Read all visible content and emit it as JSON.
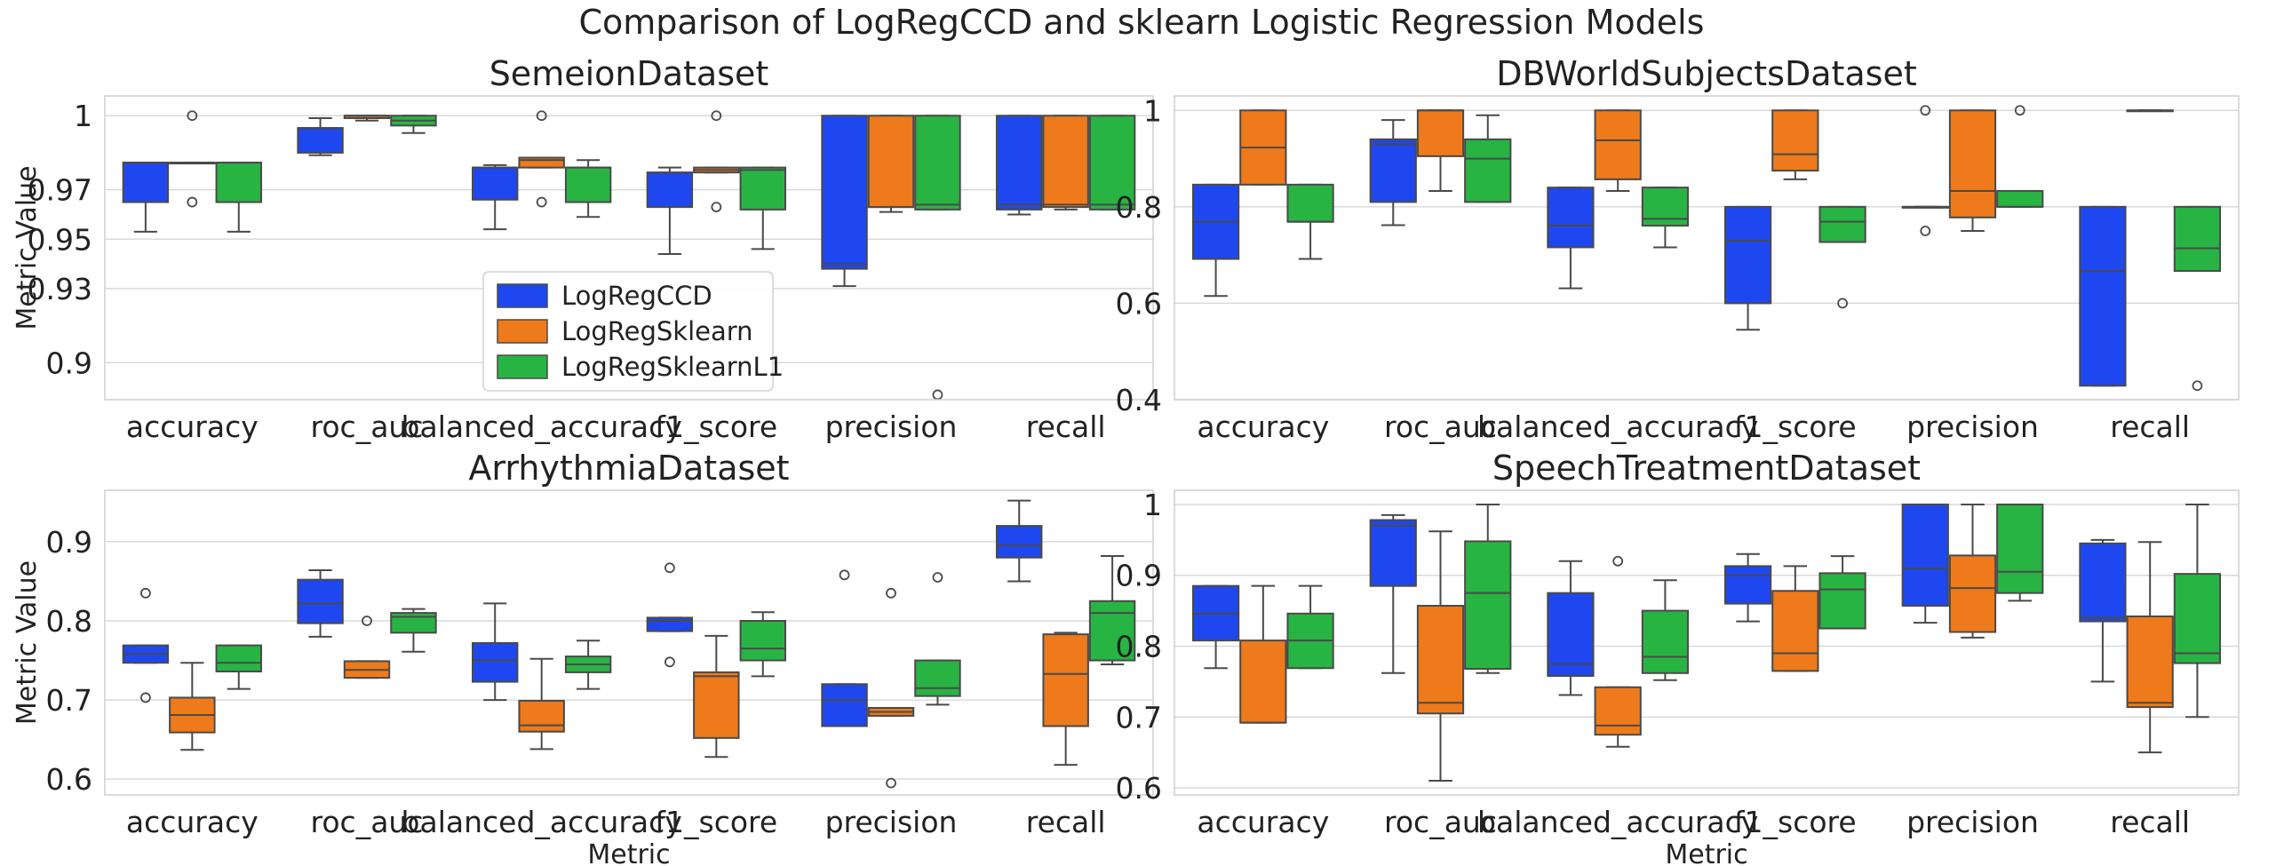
{
  "figure_title": "Comparison of LogRegCCD and sklearn Logistic Regression Models",
  "colors": {
    "LogRegCCD": "#1f47f0",
    "LogRegSklearn": "#ee7a1b",
    "LogRegSklearnL1": "#28b443"
  },
  "legend": {
    "placement": "inside lower-center of top-left panel",
    "entries": [
      "LogRegCCD",
      "LogRegSklearn",
      "LogRegSklearnL1"
    ]
  },
  "chart_data": [
    {
      "type": "box",
      "title": "SemeionDataset",
      "xlabel": "",
      "ylabel": "Metric Value",
      "categories": [
        "accuracy",
        "roc_auc",
        "balanced_accuracy",
        "f1_score",
        "precision",
        "recall"
      ],
      "ylim": [
        0.885,
        1.008
      ],
      "yticks": [
        0.9,
        0.93,
        0.95,
        0.97,
        1
      ],
      "ytick_labels": [
        "0.9",
        "0.93",
        "0.95",
        "0.97",
        "1"
      ],
      "grid": true,
      "series": [
        {
          "name": "LogRegCCD",
          "boxes": [
            {
              "wlo": 0.953,
              "q1": 0.965,
              "med": 0.981,
              "q3": 0.981,
              "whi": 0.981,
              "fliers": []
            },
            {
              "wlo": 0.984,
              "q1": 0.985,
              "med": 0.995,
              "q3": 0.995,
              "whi": 0.999,
              "fliers": []
            },
            {
              "wlo": 0.954,
              "q1": 0.966,
              "med": 0.979,
              "q3": 0.979,
              "whi": 0.98,
              "fliers": []
            },
            {
              "wlo": 0.944,
              "q1": 0.963,
              "med": 0.977,
              "q3": 0.977,
              "whi": 0.979,
              "fliers": []
            },
            {
              "wlo": 0.931,
              "q1": 0.938,
              "med": 0.94,
              "q3": 1.0,
              "whi": 1.0,
              "fliers": []
            },
            {
              "wlo": 0.96,
              "q1": 0.962,
              "med": 0.964,
              "q3": 1.0,
              "whi": 1.0,
              "fliers": []
            }
          ]
        },
        {
          "name": "LogRegSklearn",
          "boxes": [
            {
              "wlo": 0.981,
              "q1": 0.981,
              "med": 0.981,
              "q3": 0.981,
              "whi": 0.981,
              "fliers": [
                1.0,
                0.965
              ]
            },
            {
              "wlo": 0.998,
              "q1": 0.999,
              "med": 1.0,
              "q3": 1.0,
              "whi": 1.0,
              "fliers": []
            },
            {
              "wlo": 0.979,
              "q1": 0.979,
              "med": 0.982,
              "q3": 0.983,
              "whi": 0.983,
              "fliers": [
                1.0,
                0.965
              ]
            },
            {
              "wlo": 0.977,
              "q1": 0.977,
              "med": 0.978,
              "q3": 0.979,
              "whi": 0.979,
              "fliers": [
                1.0,
                0.963
              ]
            },
            {
              "wlo": 0.961,
              "q1": 0.963,
              "med": 0.963,
              "q3": 1.0,
              "whi": 1.0,
              "fliers": []
            },
            {
              "wlo": 0.962,
              "q1": 0.963,
              "med": 0.964,
              "q3": 1.0,
              "whi": 1.0,
              "fliers": []
            }
          ]
        },
        {
          "name": "LogRegSklearnL1",
          "boxes": [
            {
              "wlo": 0.953,
              "q1": 0.965,
              "med": 0.981,
              "q3": 0.981,
              "whi": 0.981,
              "fliers": []
            },
            {
              "wlo": 0.993,
              "q1": 0.996,
              "med": 0.998,
              "q3": 1.0,
              "whi": 1.0,
              "fliers": []
            },
            {
              "wlo": 0.959,
              "q1": 0.965,
              "med": 0.979,
              "q3": 0.979,
              "whi": 0.982,
              "fliers": []
            },
            {
              "wlo": 0.946,
              "q1": 0.962,
              "med": 0.978,
              "q3": 0.979,
              "whi": 0.979,
              "fliers": []
            },
            {
              "wlo": 0.962,
              "q1": 0.962,
              "med": 0.964,
              "q3": 1.0,
              "whi": 1.0,
              "fliers": [
                0.887
              ]
            },
            {
              "wlo": 0.962,
              "q1": 0.962,
              "med": 0.964,
              "q3": 1.0,
              "whi": 1.0,
              "fliers": []
            }
          ]
        }
      ]
    },
    {
      "type": "box",
      "title": "DBWorldSubjectsDataset",
      "xlabel": "",
      "ylabel": "",
      "categories": [
        "accuracy",
        "roc_auc",
        "balanced_accuracy",
        "f1_score",
        "precision",
        "recall"
      ],
      "ylim": [
        0.4,
        1.03
      ],
      "yticks": [
        0.4,
        0.6,
        0.8,
        1
      ],
      "ytick_labels": [
        "0.4",
        "0.6",
        "0.8",
        "1"
      ],
      "grid": true,
      "series": [
        {
          "name": "LogRegCCD",
          "boxes": [
            {
              "wlo": 0.615,
              "q1": 0.692,
              "med": 0.769,
              "q3": 0.846,
              "whi": 0.846,
              "fliers": []
            },
            {
              "wlo": 0.762,
              "q1": 0.81,
              "med": 0.93,
              "q3": 0.94,
              "whi": 0.98,
              "fliers": []
            },
            {
              "wlo": 0.631,
              "q1": 0.716,
              "med": 0.761,
              "q3": 0.84,
              "whi": 0.84,
              "fliers": []
            },
            {
              "wlo": 0.545,
              "q1": 0.6,
              "med": 0.73,
              "q3": 0.8,
              "whi": 0.8,
              "fliers": []
            },
            {
              "wlo": 0.8,
              "q1": 0.8,
              "med": 0.8,
              "q3": 0.8,
              "whi": 0.8,
              "fliers": [
                1.0,
                0.75
              ]
            },
            {
              "wlo": 0.429,
              "q1": 0.429,
              "med": 0.667,
              "q3": 0.8,
              "whi": 0.8,
              "fliers": []
            }
          ]
        },
        {
          "name": "LogRegSklearn",
          "boxes": [
            {
              "wlo": 0.846,
              "q1": 0.846,
              "med": 0.923,
              "q3": 1.0,
              "whi": 1.0,
              "fliers": []
            },
            {
              "wlo": 0.833,
              "q1": 0.905,
              "med": 1.0,
              "q3": 1.0,
              "whi": 1.0,
              "fliers": []
            },
            {
              "wlo": 0.833,
              "q1": 0.857,
              "med": 0.938,
              "q3": 1.0,
              "whi": 1.0,
              "fliers": []
            },
            {
              "wlo": 0.857,
              "q1": 0.875,
              "med": 0.909,
              "q3": 1.0,
              "whi": 1.0,
              "fliers": []
            },
            {
              "wlo": 0.75,
              "q1": 0.778,
              "med": 0.833,
              "q3": 1.0,
              "whi": 1.0,
              "fliers": []
            },
            {
              "wlo": 1.0,
              "q1": 1.0,
              "med": 1.0,
              "q3": 1.0,
              "whi": 1.0,
              "fliers": []
            }
          ]
        },
        {
          "name": "LogRegSklearnL1",
          "boxes": [
            {
              "wlo": 0.692,
              "q1": 0.769,
              "med": 0.769,
              "q3": 0.846,
              "whi": 0.846,
              "fliers": []
            },
            {
              "wlo": 0.81,
              "q1": 0.81,
              "med": 0.9,
              "q3": 0.94,
              "whi": 0.99,
              "fliers": []
            },
            {
              "wlo": 0.716,
              "q1": 0.761,
              "med": 0.775,
              "q3": 0.84,
              "whi": 0.84,
              "fliers": []
            },
            {
              "wlo": 0.727,
              "q1": 0.727,
              "med": 0.769,
              "q3": 0.8,
              "whi": 0.8,
              "fliers": [
                0.6
              ]
            },
            {
              "wlo": 0.8,
              "q1": 0.8,
              "med": 0.8,
              "q3": 0.833,
              "whi": 0.833,
              "fliers": [
                1.0
              ]
            },
            {
              "wlo": 0.667,
              "q1": 0.667,
              "med": 0.714,
              "q3": 0.8,
              "whi": 0.8,
              "fliers": [
                0.429
              ]
            }
          ]
        }
      ]
    },
    {
      "type": "box",
      "title": "ArrhythmiaDataset",
      "xlabel": "Metric",
      "ylabel": "Metric Value",
      "categories": [
        "accuracy",
        "roc_auc",
        "balanced_accuracy",
        "f1_score",
        "precision",
        "recall"
      ],
      "ylim": [
        0.58,
        0.965
      ],
      "yticks": [
        0.6,
        0.7,
        0.8,
        0.9
      ],
      "ytick_labels": [
        "0.6",
        "0.7",
        "0.8",
        "0.9"
      ],
      "grid": true,
      "series": [
        {
          "name": "LogRegCCD",
          "boxes": [
            {
              "wlo": 0.747,
              "q1": 0.747,
              "med": 0.758,
              "q3": 0.769,
              "whi": 0.769,
              "fliers": [
                0.835,
                0.703
              ]
            },
            {
              "wlo": 0.78,
              "q1": 0.797,
              "med": 0.822,
              "q3": 0.852,
              "whi": 0.864,
              "fliers": []
            },
            {
              "wlo": 0.7,
              "q1": 0.723,
              "med": 0.75,
              "q3": 0.772,
              "whi": 0.822,
              "fliers": []
            },
            {
              "wlo": 0.787,
              "q1": 0.787,
              "med": 0.8,
              "q3": 0.804,
              "whi": 0.804,
              "fliers": [
                0.867,
                0.748
              ]
            },
            {
              "wlo": 0.667,
              "q1": 0.667,
              "med": 0.7,
              "q3": 0.72,
              "whi": 0.72,
              "fliers": [
                0.858
              ]
            },
            {
              "wlo": 0.85,
              "q1": 0.88,
              "med": 0.895,
              "q3": 0.92,
              "whi": 0.952,
              "fliers": []
            }
          ]
        },
        {
          "name": "LogRegSklearn",
          "boxes": [
            {
              "wlo": 0.637,
              "q1": 0.659,
              "med": 0.681,
              "q3": 0.703,
              "whi": 0.747,
              "fliers": []
            },
            {
              "wlo": 0.728,
              "q1": 0.728,
              "med": 0.738,
              "q3": 0.749,
              "whi": 0.749,
              "fliers": [
                0.8
              ]
            },
            {
              "wlo": 0.638,
              "q1": 0.66,
              "med": 0.668,
              "q3": 0.699,
              "whi": 0.752,
              "fliers": []
            },
            {
              "wlo": 0.628,
              "q1": 0.652,
              "med": 0.73,
              "q3": 0.735,
              "whi": 0.781,
              "fliers": []
            },
            {
              "wlo": 0.68,
              "q1": 0.68,
              "med": 0.685,
              "q3": 0.69,
              "whi": 0.69,
              "fliers": [
                0.835,
                0.595
              ]
            },
            {
              "wlo": 0.618,
              "q1": 0.667,
              "med": 0.733,
              "q3": 0.783,
              "whi": 0.785,
              "fliers": []
            }
          ]
        },
        {
          "name": "LogRegSklearnL1",
          "boxes": [
            {
              "wlo": 0.714,
              "q1": 0.736,
              "med": 0.747,
              "q3": 0.769,
              "whi": 0.769,
              "fliers": []
            },
            {
              "wlo": 0.761,
              "q1": 0.785,
              "med": 0.805,
              "q3": 0.81,
              "whi": 0.815,
              "fliers": []
            },
            {
              "wlo": 0.714,
              "q1": 0.735,
              "med": 0.745,
              "q3": 0.755,
              "whi": 0.775,
              "fliers": []
            },
            {
              "wlo": 0.73,
              "q1": 0.75,
              "med": 0.765,
              "q3": 0.8,
              "whi": 0.811,
              "fliers": []
            },
            {
              "wlo": 0.694,
              "q1": 0.705,
              "med": 0.715,
              "q3": 0.75,
              "whi": 0.75,
              "fliers": [
                0.855
              ]
            },
            {
              "wlo": 0.745,
              "q1": 0.75,
              "med": 0.81,
              "q3": 0.825,
              "whi": 0.882,
              "fliers": []
            }
          ]
        }
      ]
    },
    {
      "type": "box",
      "title": "SpeechTreatmentDataset",
      "xlabel": "Metric",
      "ylabel": "",
      "categories": [
        "accuracy",
        "roc_auc",
        "balanced_accuracy",
        "f1_score",
        "precision",
        "recall"
      ],
      "ylim": [
        0.59,
        1.02
      ],
      "yticks": [
        0.6,
        0.7,
        0.8,
        0.9,
        1
      ],
      "ytick_labels": [
        "0.6",
        "0.7",
        "0.8",
        "0.9",
        "1"
      ],
      "grid": true,
      "series": [
        {
          "name": "LogRegCCD",
          "boxes": [
            {
              "wlo": 0.769,
              "q1": 0.808,
              "med": 0.846,
              "q3": 0.885,
              "whi": 0.885,
              "fliers": []
            },
            {
              "wlo": 0.762,
              "q1": 0.885,
              "med": 0.97,
              "q3": 0.978,
              "whi": 0.985,
              "fliers": []
            },
            {
              "wlo": 0.731,
              "q1": 0.758,
              "med": 0.775,
              "q3": 0.875,
              "whi": 0.92,
              "fliers": []
            },
            {
              "wlo": 0.835,
              "q1": 0.86,
              "med": 0.9,
              "q3": 0.913,
              "whi": 0.93,
              "fliers": []
            },
            {
              "wlo": 0.833,
              "q1": 0.857,
              "med": 0.91,
              "q3": 1.0,
              "whi": 1.0,
              "fliers": []
            },
            {
              "wlo": 0.75,
              "q1": 0.835,
              "med": 0.84,
              "q3": 0.945,
              "whi": 0.95,
              "fliers": []
            }
          ]
        },
        {
          "name": "LogRegSklearn",
          "boxes": [
            {
              "wlo": 0.692,
              "q1": 0.692,
              "med": 0.692,
              "q3": 0.808,
              "whi": 0.885,
              "fliers": []
            },
            {
              "wlo": 0.61,
              "q1": 0.705,
              "med": 0.72,
              "q3": 0.857,
              "whi": 0.962,
              "fliers": []
            },
            {
              "wlo": 0.658,
              "q1": 0.675,
              "med": 0.688,
              "q3": 0.742,
              "whi": 0.742,
              "fliers": [
                0.92
              ]
            },
            {
              "wlo": 0.765,
              "q1": 0.765,
              "med": 0.79,
              "q3": 0.878,
              "whi": 0.913,
              "fliers": []
            },
            {
              "wlo": 0.812,
              "q1": 0.82,
              "med": 0.882,
              "q3": 0.928,
              "whi": 1.0,
              "fliers": []
            },
            {
              "wlo": 0.65,
              "q1": 0.714,
              "med": 0.72,
              "q3": 0.842,
              "whi": 0.947,
              "fliers": []
            }
          ]
        },
        {
          "name": "LogRegSklearnL1",
          "boxes": [
            {
              "wlo": 0.769,
              "q1": 0.769,
              "med": 0.808,
              "q3": 0.846,
              "whi": 0.885,
              "fliers": []
            },
            {
              "wlo": 0.762,
              "q1": 0.768,
              "med": 0.875,
              "q3": 0.948,
              "whi": 1.0,
              "fliers": []
            },
            {
              "wlo": 0.752,
              "q1": 0.762,
              "med": 0.785,
              "q3": 0.85,
              "whi": 0.893,
              "fliers": []
            },
            {
              "wlo": 0.825,
              "q1": 0.825,
              "med": 0.88,
              "q3": 0.903,
              "whi": 0.927,
              "fliers": []
            },
            {
              "wlo": 0.864,
              "q1": 0.875,
              "med": 0.905,
              "q3": 1.0,
              "whi": 1.0,
              "fliers": []
            },
            {
              "wlo": 0.7,
              "q1": 0.776,
              "med": 0.79,
              "q3": 0.902,
              "whi": 1.0,
              "fliers": []
            }
          ]
        }
      ]
    }
  ]
}
